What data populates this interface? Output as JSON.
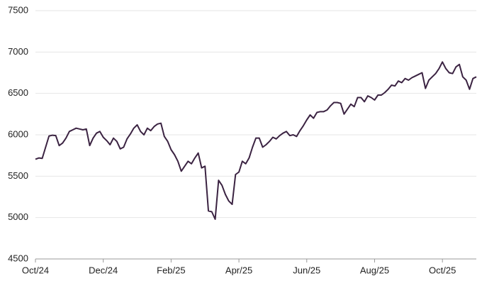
{
  "chart_data": {
    "type": "line",
    "categories": [
      "Oct/24",
      null,
      null,
      null,
      null,
      null,
      null,
      null,
      null,
      null,
      null,
      null,
      null,
      null,
      null,
      null,
      null,
      null,
      null,
      null,
      "Dec/24",
      null,
      null,
      null,
      null,
      null,
      null,
      null,
      null,
      null,
      null,
      null,
      null,
      null,
      null,
      null,
      null,
      null,
      null,
      null,
      "Feb/25",
      null,
      null,
      null,
      null,
      null,
      null,
      null,
      null,
      null,
      null,
      null,
      null,
      null,
      null,
      null,
      null,
      null,
      null,
      null,
      "Apr/25",
      null,
      null,
      null,
      null,
      null,
      null,
      null,
      null,
      null,
      null,
      null,
      null,
      null,
      null,
      null,
      null,
      null,
      null,
      null,
      "Jun/25",
      null,
      null,
      null,
      null,
      null,
      null,
      null,
      null,
      null,
      null,
      null,
      null,
      null,
      null,
      null,
      null,
      null,
      null,
      null,
      "Aug/25",
      null,
      null,
      null,
      null,
      null,
      null,
      null,
      null,
      null,
      null,
      null,
      null,
      null,
      null,
      null,
      null,
      null,
      null,
      null,
      "Oct/25",
      null,
      null,
      null,
      null,
      null,
      null,
      null,
      null,
      null,
      null
    ],
    "values": [
      5705,
      5720,
      5715,
      5850,
      5985,
      5995,
      5990,
      5870,
      5900,
      5960,
      6040,
      6060,
      6080,
      6070,
      6060,
      6070,
      5870,
      5960,
      6020,
      6040,
      5970,
      5930,
      5880,
      5960,
      5920,
      5830,
      5850,
      5950,
      6010,
      6080,
      6120,
      6040,
      6000,
      6080,
      6050,
      6100,
      6130,
      6140,
      5980,
      5920,
      5820,
      5760,
      5680,
      5560,
      5620,
      5680,
      5650,
      5720,
      5780,
      5600,
      5620,
      5080,
      5070,
      4980,
      5450,
      5390,
      5280,
      5200,
      5160,
      5520,
      5550,
      5680,
      5650,
      5720,
      5850,
      5960,
      5960,
      5850,
      5880,
      5920,
      5970,
      5950,
      5990,
      6020,
      6040,
      5990,
      6000,
      5980,
      6050,
      6110,
      6180,
      6240,
      6200,
      6270,
      6280,
      6280,
      6300,
      6350,
      6390,
      6390,
      6380,
      6250,
      6310,
      6370,
      6340,
      6450,
      6450,
      6400,
      6470,
      6450,
      6420,
      6480,
      6480,
      6510,
      6550,
      6600,
      6590,
      6650,
      6630,
      6680,
      6660,
      6690,
      6710,
      6730,
      6750,
      6560,
      6660,
      6700,
      6740,
      6800,
      6880,
      6800,
      6750,
      6740,
      6820,
      6850,
      6700,
      6660,
      6550,
      6680,
      6700
    ],
    "color": "#3b2342",
    "ylim": [
      4500,
      7500
    ],
    "yticks": [
      4500,
      5000,
      5500,
      6000,
      6500,
      7000,
      7500
    ],
    "grid": true
  }
}
